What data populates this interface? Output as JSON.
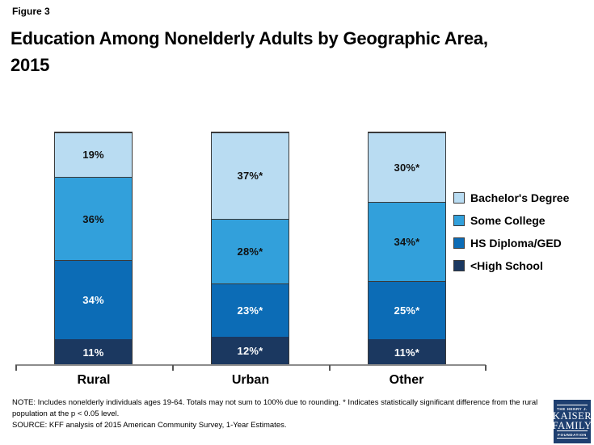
{
  "figure_label": "Figure 3",
  "title_line1": "Education Among Nonelderly Adults by Geographic Area,",
  "title_line2": "2015",
  "chart_data": {
    "type": "bar",
    "subtype": "stacked-percent",
    "title": "Education Among Nonelderly Adults by Geographic Area, 2015",
    "categories": [
      "Rural",
      "Urban",
      "Other"
    ],
    "series": [
      {
        "name": "<High School",
        "color": "#1B3860",
        "label_color": "#FFFFFF",
        "values": [
          11,
          12,
          11
        ],
        "labels": [
          "11%",
          "12%*",
          "11%*"
        ]
      },
      {
        "name": "HS Diploma/GED",
        "color": "#0C6CB6",
        "label_color": "#FFFFFF",
        "values": [
          34,
          23,
          25
        ],
        "labels": [
          "34%",
          "23%*",
          "25%*"
        ]
      },
      {
        "name": "Some College",
        "color": "#32A0DB",
        "label_color": "#111111",
        "values": [
          36,
          28,
          34
        ],
        "labels": [
          "36%",
          "28%*",
          "34%*"
        ]
      },
      {
        "name": "Bachelor's Degree",
        "color": "#B9DCF2",
        "label_color": "#111111",
        "values": [
          19,
          37,
          30
        ],
        "labels": [
          "19%",
          "37%*",
          "30%*"
        ]
      }
    ],
    "legend_order_top_down": [
      "Bachelor's Degree",
      "Some College",
      "HS Diploma/GED",
      "<High School"
    ],
    "legend_position": "right",
    "ylim": [
      0,
      100
    ],
    "grid": false,
    "annotation_note": "* Indicates statistically significant difference from the rural population at the p < 0.05 level."
  },
  "footer": {
    "note": "NOTE:  Includes nonelderly individuals ages 19-64. Totals may not sum to 100% due to rounding.  * Indicates statistically significant difference from the rural population at the p < 0.05 level.",
    "source": "SOURCE: KFF analysis of 2015 American Community Survey, 1-Year Estimates."
  },
  "logo": {
    "top": "THE HENRY J.",
    "line1": "KAISER",
    "line2": "FAMILY",
    "bottom": "FOUNDATION",
    "bg_color": "#1E3F70"
  }
}
